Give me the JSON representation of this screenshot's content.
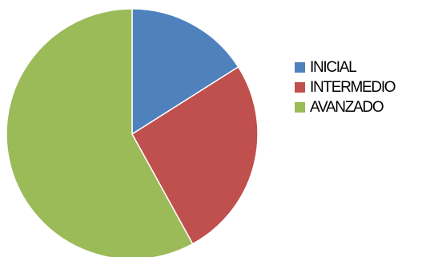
{
  "chart_data": {
    "type": "pie",
    "categories": [
      "INICIAL",
      "INTERMEDIO",
      "AVANZADO"
    ],
    "values": [
      16,
      26,
      58
    ],
    "colors": [
      "#4f81bd",
      "#c0504d",
      "#9bbb59"
    ],
    "legend_position": "right"
  }
}
